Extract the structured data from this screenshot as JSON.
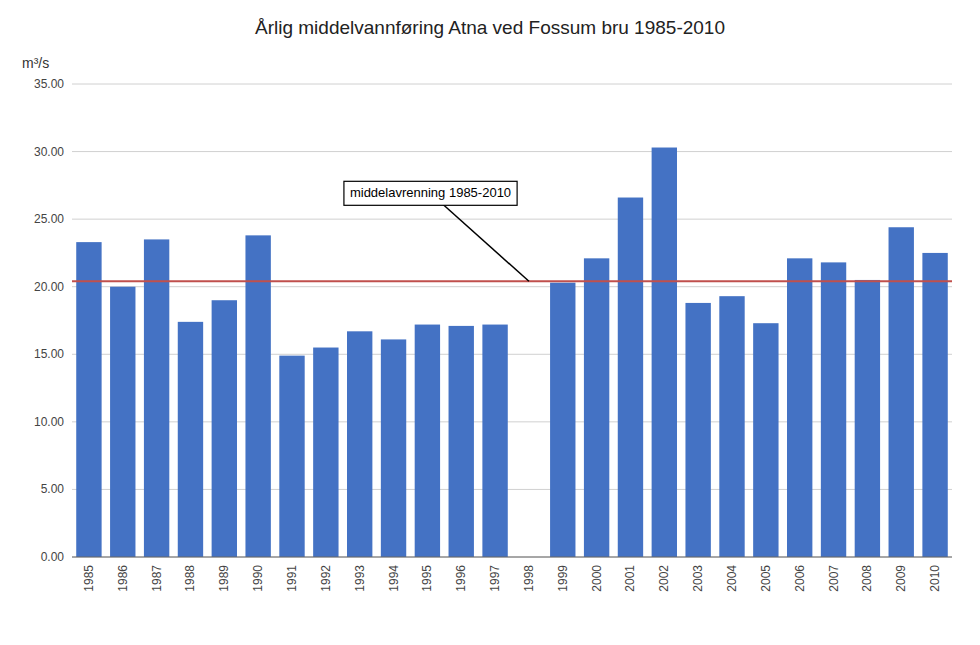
{
  "chart_data": {
    "type": "bar",
    "title": "Årlig middelvannføring  Atna ved Fossum bru 1985-2010",
    "y_label": "m³/s",
    "categories": [
      "1985",
      "1986",
      "1987",
      "1988",
      "1989",
      "1990",
      "1991",
      "1992",
      "1993",
      "1994",
      "1995",
      "1996",
      "1997",
      "1998",
      "1999",
      "2000",
      "2001",
      "2002",
      "2003",
      "2004",
      "2005",
      "2006",
      "2007",
      "2008",
      "2009",
      "2010"
    ],
    "values": [
      23.3,
      20.0,
      23.5,
      17.4,
      19.0,
      23.8,
      14.9,
      15.5,
      16.7,
      16.1,
      17.2,
      17.1,
      17.2,
      null,
      20.3,
      22.1,
      26.6,
      30.3,
      18.8,
      19.3,
      17.3,
      22.1,
      21.8,
      20.5,
      24.4,
      22.5
    ],
    "color": "#4472C4",
    "reference_line": {
      "value": 20.4,
      "color": "#C0504D"
    },
    "annotations": [
      {
        "text": "middelavrenning 1985-2010",
        "x": "1998",
        "y": 20.4
      }
    ],
    "ylim": [
      0,
      35
    ],
    "yticks": [
      {
        "value": 0,
        "label": "0.00"
      },
      {
        "value": 5,
        "label": "5.00"
      },
      {
        "value": 10,
        "label": "10.00"
      },
      {
        "value": 15,
        "label": "15.00"
      },
      {
        "value": 20,
        "label": "20.00"
      },
      {
        "value": 25,
        "label": "25.00"
      },
      {
        "value": 30,
        "label": "30.00"
      },
      {
        "value": 35,
        "label": "35.00"
      }
    ],
    "grid": true
  }
}
